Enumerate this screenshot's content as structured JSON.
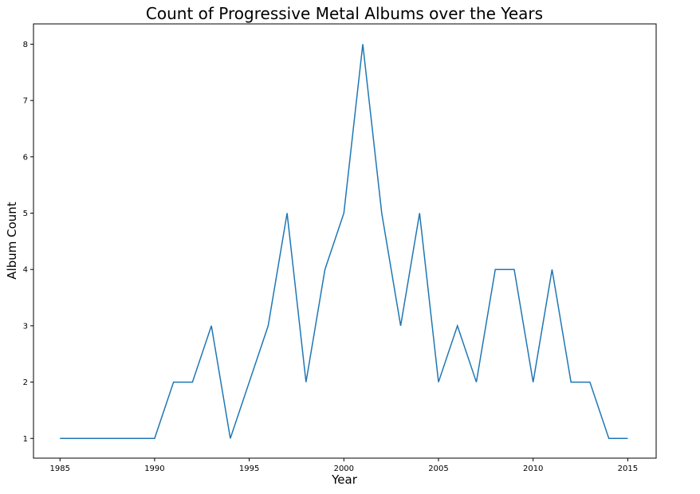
{
  "chart_data": {
    "type": "line",
    "title": "Count of Progressive Metal Albums over the Years",
    "xlabel": "Year",
    "ylabel": "Album Count",
    "xlim": [
      1983.6,
      2016.5
    ],
    "ylim": [
      0.65,
      8.36
    ],
    "xticks": [
      1985,
      1990,
      1995,
      2000,
      2005,
      2010,
      2015
    ],
    "yticks": [
      1,
      2,
      3,
      4,
      5,
      6,
      7,
      8
    ],
    "grid": false,
    "series": [
      {
        "color": "#1f77b4",
        "x": [
          1985,
          1986,
          1987,
          1988,
          1989,
          1990,
          1991,
          1992,
          1993,
          1994,
          1995,
          1996,
          1997,
          1998,
          1999,
          2000,
          2001,
          2002,
          2003,
          2004,
          2005,
          2006,
          2007,
          2008,
          2009,
          2010,
          2011,
          2012,
          2013,
          2014,
          2015
        ],
        "y": [
          1,
          1,
          1,
          1,
          1,
          1,
          2,
          2,
          3,
          1,
          2,
          3,
          5,
          2,
          4,
          5,
          8,
          5,
          3,
          5,
          2,
          3,
          2,
          4,
          4,
          2,
          4,
          2,
          2,
          1,
          1
        ]
      }
    ]
  }
}
